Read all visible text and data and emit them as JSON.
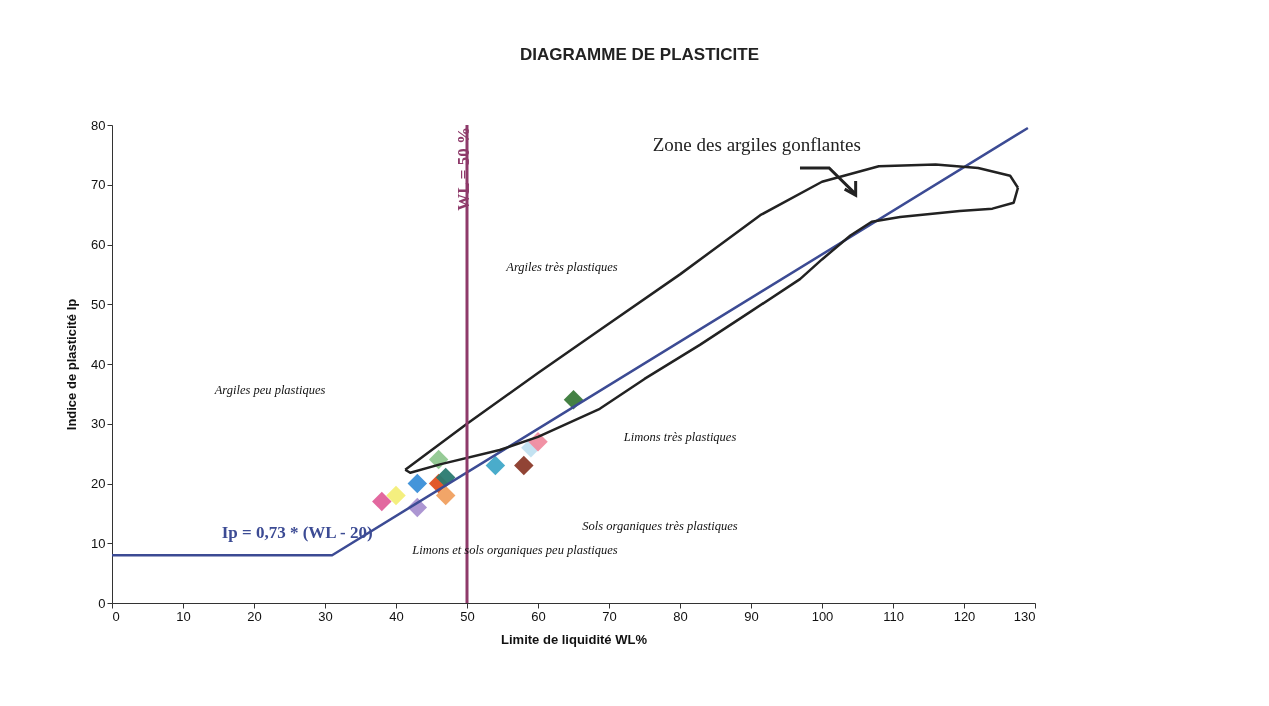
{
  "chart_data": {
    "type": "scatter",
    "title": "DIAGRAMME DE PLASTICITE",
    "xlabel": "Limite de liquidité WL%",
    "ylabel": "Indice de plasticité Ip",
    "xlim": [
      0,
      130
    ],
    "ylim": [
      0,
      80
    ],
    "xticks": [
      0,
      10,
      20,
      30,
      40,
      50,
      60,
      70,
      80,
      90,
      100,
      110,
      120,
      130
    ],
    "yticks": [
      0,
      10,
      20,
      30,
      40,
      50,
      60,
      70,
      80
    ],
    "grid": false,
    "legend": false,
    "series": [
      {
        "marker": "diamond",
        "x": [
          38,
          40,
          43,
          43,
          46,
          46,
          47,
          47,
          54,
          58,
          59,
          60,
          65
        ],
        "values": [
          17,
          18,
          16,
          20,
          20,
          24,
          21,
          18,
          23,
          23,
          26,
          27,
          34
        ],
        "colors": [
          "#e0609a",
          "#f3ee78",
          "#a890d0",
          "#3a8fd8",
          "#e05020",
          "#90c890",
          "#2a7a70",
          "#f0a060",
          "#40a8c8",
          "#8b3a2a",
          "#c0e0f0",
          "#f08ca0",
          "#3a7a3a"
        ]
      },
      {
        "type": "line",
        "name": "Ip = 0,73 * (WL - 20)",
        "color": "#3c4b94",
        "x": [
          0,
          31,
          129
        ],
        "values": [
          8,
          8,
          79.5
        ]
      },
      {
        "type": "line",
        "name": "Zone des argiles gonflantes",
        "color": "#222222",
        "x": [
          41.3,
          50,
          60,
          68.7,
          80,
          91.3,
          100,
          108,
          116,
          122,
          126.5,
          127.6
        ],
        "values": [
          22.3,
          30,
          38.5,
          45.7,
          55,
          64.9,
          70.5,
          73.1,
          73.4,
          72.8,
          71.5,
          69.5
        ]
      },
      {
        "type": "line",
        "color": "#222222",
        "x": [
          41.3,
          42,
          46.2,
          54.6,
          60,
          68.7,
          75,
          82.8,
          90,
          96.9,
          100,
          104,
          107,
          111,
          119.4,
          124,
          127,
          127.6
        ],
        "values": [
          22.3,
          21.8,
          23.2,
          25.6,
          27.8,
          32.5,
          37.5,
          43.2,
          48.8,
          54.2,
          57.5,
          61.5,
          63.8,
          64.6,
          65.6,
          66,
          67,
          69.5
        ]
      }
    ],
    "ref_lines": [
      {
        "axis": "x",
        "value": 50,
        "label": "WL = 50 %",
        "color": "#8e3a6a"
      }
    ],
    "annotations": [
      "Argiles très plastiques",
      "Argiles peu plastiques",
      "Limons très plastiques",
      "Sols organiques très plastiques",
      "Limons et sols organiques peu plastiques"
    ]
  }
}
